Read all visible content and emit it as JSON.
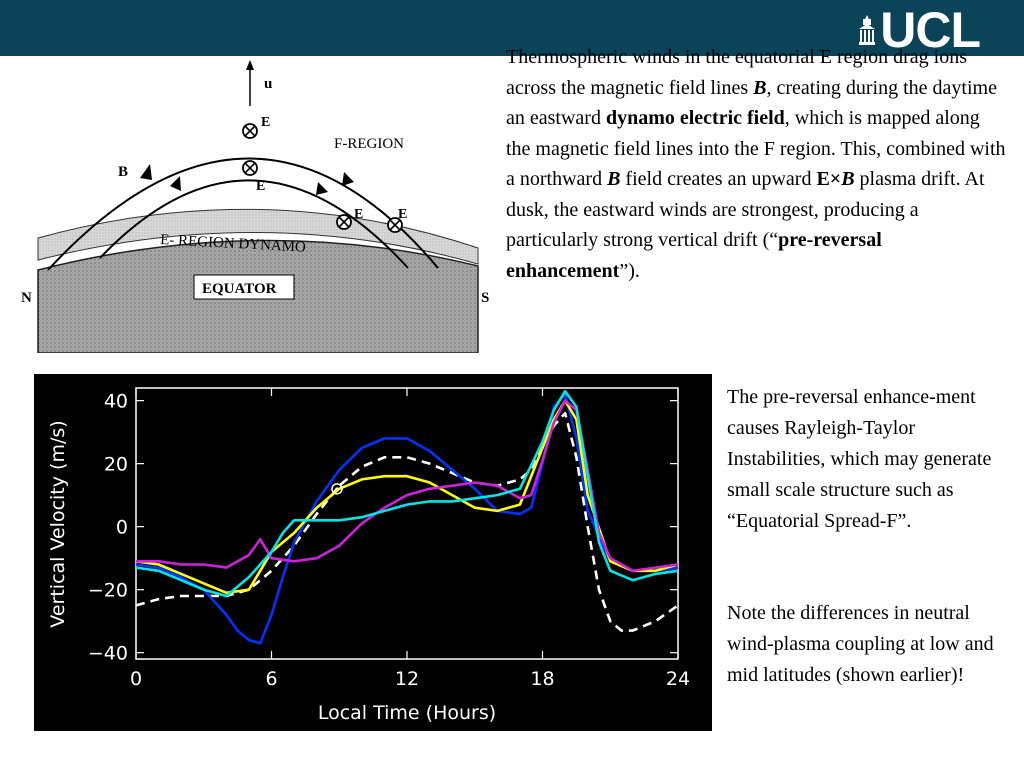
{
  "header": {
    "logo_text": "UCL",
    "brand_color": "#0b4459"
  },
  "diagram": {
    "label_u": "u",
    "label_E_top": "E",
    "label_E_mid": "E",
    "label_E_right1": "E",
    "label_E_right2": "E",
    "label_F_region": "F-REGION",
    "label_B": "B",
    "label_dynamo": "E- REGION DYNAMO",
    "label_equator": "EQUATOR",
    "label_N": "N",
    "label_S": "S"
  },
  "text": {
    "para1": [
      {
        "t": "Thermospheric winds in the equatorial E region drag ions across the magnetic field lines ",
        "s": "n"
      },
      {
        "t": "B",
        "s": "bi"
      },
      {
        "t": ", creating during the daytime an eastward ",
        "s": "n"
      },
      {
        "t": "dynamo electric field",
        "s": "b"
      },
      {
        "t": ", which is mapped along the magnetic field lines into the F region. This, combined with a northward ",
        "s": "n"
      },
      {
        "t": "B",
        "s": "bi"
      },
      {
        "t": " field creates an upward ",
        "s": "n"
      },
      {
        "t": "E×",
        "s": "b"
      },
      {
        "t": "B",
        "s": "bi"
      },
      {
        "t": " plasma drift. At dusk, the eastward winds are strongest, producing a particularly strong vertical drift (“",
        "s": "n"
      },
      {
        "t": "pre-reversal enhancement",
        "s": "b"
      },
      {
        "t": "”).",
        "s": "n"
      }
    ],
    "para2": "The pre-reversal enhance-ment causes Rayleigh-Taylor Instabilities, which may generate small scale structure such as “Equatorial Spread-F”.",
    "para3": "Note the differences in neutral wind-plasma coupling at low and mid latitudes (shown earlier)!"
  },
  "chart_data": {
    "type": "line",
    "xlabel": "Local Time (Hours)",
    "ylabel": "Vertical Velocity (m/s)",
    "xlim": [
      0,
      24
    ],
    "ylim": [
      -42,
      44
    ],
    "xticks": [
      0,
      6,
      12,
      18,
      24
    ],
    "yticks": [
      40,
      20,
      0,
      -20,
      -40
    ],
    "grid": false,
    "background": "#000000",
    "marker": {
      "x": 8.9,
      "y": 12
    },
    "series": [
      {
        "color": "#ffffff",
        "dashed": true,
        "x": [
          0,
          1,
          2,
          3,
          4,
          5,
          6,
          7,
          8,
          9,
          10,
          11,
          12,
          13,
          14,
          15,
          16,
          17,
          17.5,
          18,
          18.5,
          19,
          19.5,
          20,
          20.5,
          21,
          21.5,
          22,
          23,
          24
        ],
        "y": [
          -25,
          -23,
          -22,
          -22,
          -22,
          -20,
          -14,
          -6,
          4,
          13,
          19,
          22,
          22,
          20,
          17,
          14,
          13,
          15,
          18,
          26,
          32,
          36,
          22,
          0,
          -20,
          -30,
          -33,
          -33,
          -30,
          -25
        ]
      },
      {
        "color": "#0033ff",
        "x": [
          0,
          1,
          2,
          3,
          4,
          4.5,
          5,
          5.5,
          6,
          6.5,
          7,
          8,
          9,
          10,
          11,
          12,
          13,
          14,
          15,
          16,
          17,
          17.5,
          18,
          18.5,
          19,
          19.5,
          20,
          21,
          22,
          23,
          24
        ],
        "y": [
          -12,
          -13,
          -16,
          -20,
          -28,
          -33,
          -36,
          -37,
          -28,
          -16,
          -5,
          8,
          18,
          25,
          28,
          28,
          24,
          18,
          12,
          5,
          4,
          6,
          20,
          38,
          42,
          28,
          5,
          -11,
          -14,
          -14,
          -13
        ]
      },
      {
        "color": "#ffff00",
        "x": [
          0,
          1,
          2,
          3,
          4,
          5,
          6,
          7,
          8,
          9,
          10,
          11,
          12,
          13,
          14,
          15,
          16,
          17,
          18,
          18.5,
          19,
          19.5,
          20,
          21,
          22,
          23,
          24
        ],
        "y": [
          -11,
          -12,
          -15,
          -18,
          -21,
          -20,
          -8,
          -2,
          6,
          12,
          15,
          16,
          16,
          14,
          10,
          6,
          5,
          7,
          25,
          34,
          40,
          34,
          10,
          -11,
          -14,
          -14,
          -12
        ]
      },
      {
        "color": "#cc22dd",
        "x": [
          0,
          1,
          2,
          3,
          4,
          5,
          5.5,
          6,
          7,
          8,
          9,
          10,
          11,
          12,
          13,
          14,
          15,
          16,
          17,
          17.5,
          18,
          18.5,
          19,
          19.5,
          20,
          20.5,
          21,
          22,
          23,
          24
        ],
        "y": [
          -11,
          -11,
          -12,
          -12,
          -13,
          -9,
          -4,
          -10,
          -11,
          -10,
          -6,
          1,
          6,
          10,
          12,
          13,
          14,
          13,
          9,
          10,
          21,
          33,
          40,
          37,
          18,
          -2,
          -10,
          -14,
          -13,
          -12
        ]
      },
      {
        "color": "#00e5e5",
        "x": [
          0,
          1,
          2,
          3,
          4,
          5,
          5.5,
          6,
          6.5,
          7,
          8,
          9,
          10,
          11,
          12,
          13,
          14,
          15,
          16,
          17,
          18,
          18.5,
          19,
          19.5,
          20,
          20.5,
          21,
          22,
          23,
          24
        ],
        "y": [
          -13,
          -14,
          -17,
          -20,
          -22,
          -16,
          -12,
          -8,
          -2,
          2,
          2,
          2,
          3,
          5,
          7,
          8,
          8,
          9,
          10,
          12,
          27,
          37,
          43,
          38,
          16,
          -5,
          -14,
          -17,
          -15,
          -14
        ]
      }
    ]
  }
}
